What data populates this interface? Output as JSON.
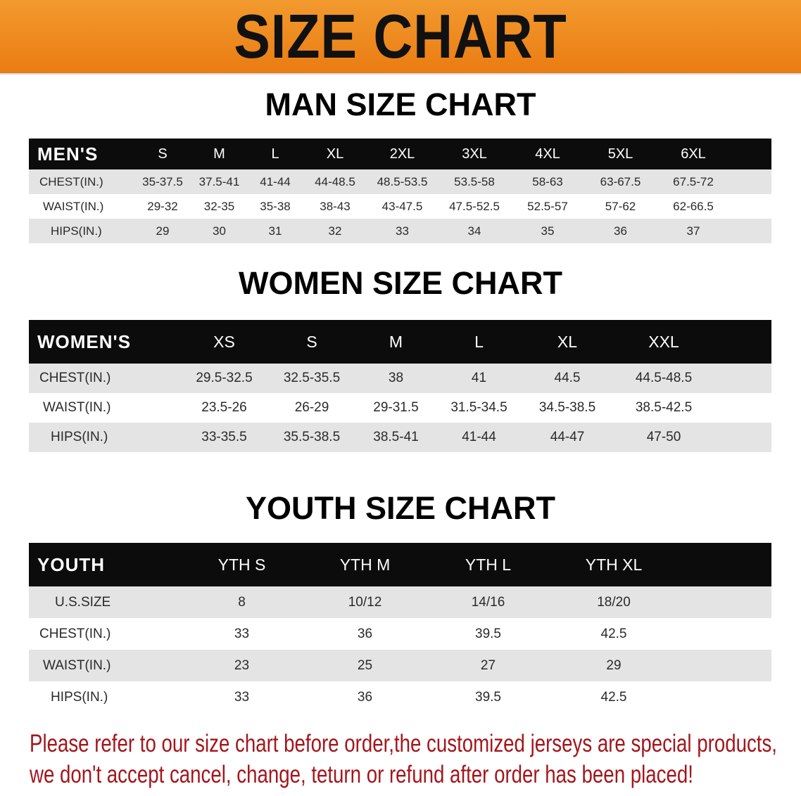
{
  "banner_title": "SIZE CHART",
  "men": {
    "title": "MAN SIZE CHART",
    "header": "MEN'S",
    "sizes": [
      "S",
      "M",
      "L",
      "XL",
      "2XL",
      "3XL",
      "4XL",
      "5XL",
      "6XL"
    ],
    "rows": [
      {
        "label": "CHEST(IN.)",
        "values": [
          "35-37.5",
          "37.5-41",
          "41-44",
          "44-48.5",
          "48.5-53.5",
          "53.5-58",
          "58-63",
          "63-67.5",
          "67.5-72"
        ]
      },
      {
        "label": "WAIST(IN.)",
        "values": [
          "29-32",
          "32-35",
          "35-38",
          "38-43",
          "43-47.5",
          "47.5-52.5",
          "52.5-57",
          "57-62",
          "62-66.5"
        ]
      },
      {
        "label": "HIPS(IN.)",
        "values": [
          "29",
          "30",
          "31",
          "32",
          "33",
          "34",
          "35",
          "36",
          "37"
        ]
      }
    ]
  },
  "women": {
    "title": "WOMEN SIZE CHART",
    "header": "WOMEN'S",
    "sizes": [
      "XS",
      "S",
      "M",
      "L",
      "XL",
      "XXL"
    ],
    "rows": [
      {
        "label": "CHEST(IN.)",
        "values": [
          "29.5-32.5",
          "32.5-35.5",
          "38",
          "41",
          "44.5",
          "44.5-48.5"
        ]
      },
      {
        "label": "WAIST(IN.)",
        "values": [
          "23.5-26",
          "26-29",
          "29-31.5",
          "31.5-34.5",
          "34.5-38.5",
          "38.5-42.5"
        ]
      },
      {
        "label": "HIPS(IN.)",
        "values": [
          "33-35.5",
          "35.5-38.5",
          "38.5-41",
          "41-44",
          "44-47",
          "47-50"
        ]
      }
    ]
  },
  "youth": {
    "title": "YOUTH SIZE CHART",
    "header": "YOUTH",
    "sizes": [
      "YTH S",
      "YTH M",
      "YTH L",
      "YTH XL"
    ],
    "rows": [
      {
        "label": "U.S.SIZE",
        "values": [
          "8",
          "10/12",
          "14/16",
          "18/20"
        ]
      },
      {
        "label": "CHEST(IN.)",
        "values": [
          "33",
          "36",
          "39.5",
          "42.5"
        ]
      },
      {
        "label": "WAIST(IN.)",
        "values": [
          "23",
          "25",
          "27",
          "29"
        ]
      },
      {
        "label": "HIPS(IN.)",
        "values": [
          "33",
          "36",
          "39.5",
          "42.5"
        ]
      }
    ]
  },
  "notice": {
    "line1": "Please refer to our size chart before order,the customized jerseys are special products,",
    "line2": "we don't accept cancel, change, teturn or refund after order has been placed!"
  },
  "colors": {
    "banner": "#ee8418",
    "header_bg": "#0c0c0c",
    "row_gray": "#e4e4e4",
    "notice": "#a3161c"
  }
}
